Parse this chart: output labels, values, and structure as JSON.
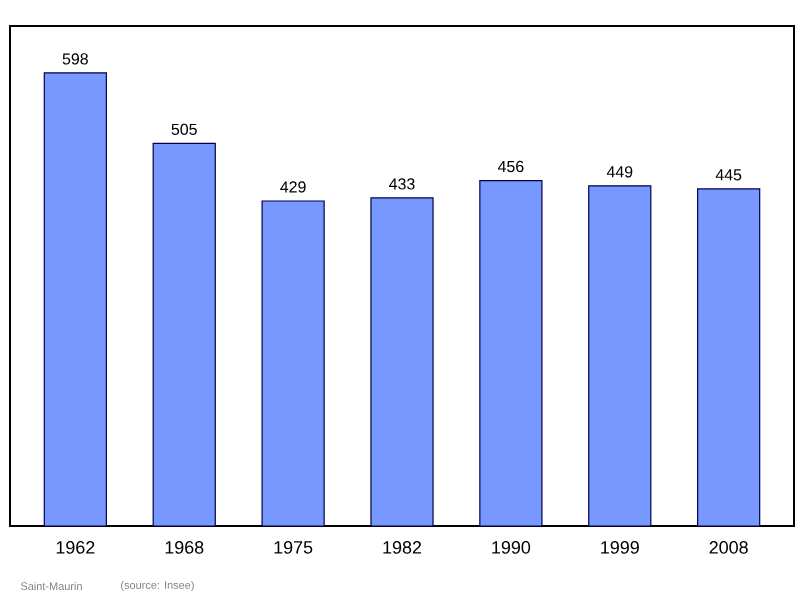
{
  "chart_data": {
    "type": "bar",
    "categories": [
      "1962",
      "1968",
      "1975",
      "1982",
      "1990",
      "1999",
      "2008"
    ],
    "values": [
      598,
      505,
      429,
      433,
      456,
      449,
      445
    ],
    "color": "#7799ff",
    "ylim": [
      0,
      660
    ],
    "data_labels": true,
    "tick_labels": "x",
    "annotations": [
      "Saint-Maurin",
      "(source: Insee)"
    ]
  }
}
